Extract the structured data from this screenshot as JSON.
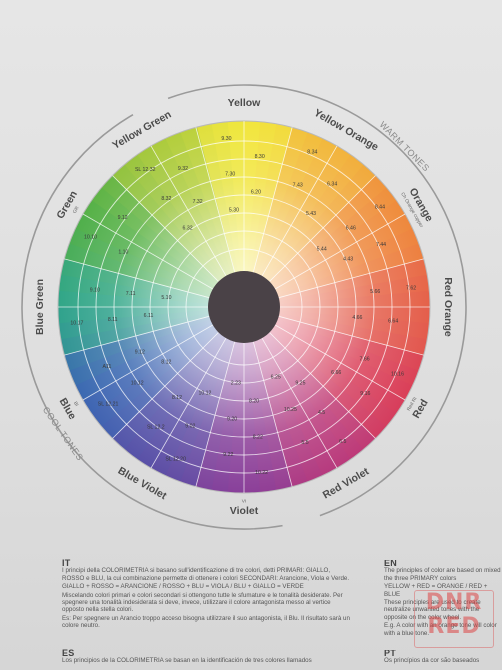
{
  "colors": {
    "yellow": "#f2e83c",
    "yellow_orange": "#f2b53c",
    "orange": "#ef8a3c",
    "red_orange": "#e5604a",
    "red": "#d93d59",
    "red_violet": "#b83a7d",
    "violet": "#8a3f99",
    "blue_violet": "#5b4fa6",
    "blue": "#3c66b3",
    "blue_green": "#2fa58a",
    "green": "#52b048",
    "yellow_green": "#a8c93c",
    "center": "#4a4247",
    "text": "#555555",
    "ring_line": "#888888"
  },
  "wheel": {
    "segments": [
      {
        "name": "Yellow",
        "sub": ""
      },
      {
        "name": "Yellow Orange",
        "sub": ""
      },
      {
        "name": "Orange",
        "sub": "Ch Orange copper"
      },
      {
        "name": "Red Orange",
        "sub": ""
      },
      {
        "name": "Red",
        "sub": "Red RI"
      },
      {
        "name": "Red Violet",
        "sub": ""
      },
      {
        "name": "Violet",
        "sub": "VI"
      },
      {
        "name": "Blue Violet",
        "sub": ""
      },
      {
        "name": "Blue",
        "sub": "BI"
      },
      {
        "name": "Blue Green",
        "sub": ""
      },
      {
        "name": "Green",
        "sub": "GR"
      },
      {
        "name": "Yellow Green",
        "sub": ""
      }
    ],
    "warm_label": "WARM TONES",
    "cool_label": "COOL TONES",
    "shade_codes": [
      {
        "seg": 0,
        "codes": [
          "9.30",
          "8.30",
          "7.30",
          "6.20",
          "5.30"
        ]
      },
      {
        "seg": 1,
        "codes": [
          "8.34",
          "6.34",
          "7.43",
          "5.43"
        ]
      },
      {
        "seg": 2,
        "codes": [
          "8.44",
          "7.44",
          "6.46",
          "4.43",
          "5.44"
        ]
      },
      {
        "seg": 3,
        "codes": [
          "7.62",
          "6.64",
          "5.66",
          "4.66"
        ]
      },
      {
        "seg": 4,
        "codes": [
          "10.16",
          "9.16",
          "7.66",
          "6.66"
        ]
      },
      {
        "seg": 5,
        "codes": [
          "6.5",
          "5.5",
          "4.5",
          "10.25",
          "9.25",
          "6.25"
        ]
      },
      {
        "seg": 6,
        "codes": [
          "10.22",
          "9.22",
          "8.22",
          "9.20",
          "8.20",
          "2.23"
        ]
      },
      {
        "seg": 7,
        "codes": [
          "SL 12.20",
          "SL 12.2",
          "9.02",
          "8.12",
          "10.12"
        ]
      },
      {
        "seg": 8,
        "codes": [
          "SL 12.21",
          "A11",
          "10.12",
          "9.12",
          "8.12"
        ]
      },
      {
        "seg": 9,
        "codes": [
          "10.17",
          "9.10",
          "8.11",
          "7.11",
          "6.11",
          "5.10"
        ]
      },
      {
        "seg": 10,
        "codes": [
          "10.10",
          "9.12",
          "1.10"
        ]
      },
      {
        "seg": 11,
        "codes": [
          "SL 12.32",
          "9.32",
          "8.32",
          "7.32",
          "6.32"
        ]
      }
    ]
  },
  "text": {
    "it_title": "IT",
    "it_p1": "I principi della COLORIMETRIA si basano sull'identificazione di tre colori, detti PRIMARI: GIALLO, ROSSO e BLU, la cui combinazione permette di ottenere i colori SECONDARI: Arancione, Viola e Verde.",
    "it_p2": "GIALLO + ROSSO = ARANCIONE / ROSSO + BLU = VIOLA / BLU + GIALLO = VERDE",
    "it_p3": "Miscelando colori primari e colori secondari si ottengono tutte le sfumature e le tonalità desiderate. Per spegnere una tonalità indesiderata si deve, invece, utilizzare il colore antagonista messo al vertice opposto nella stella colori.",
    "it_p4": "Es: Per spegnere un Arancio troppo acceso bisogna utilizzare il suo antagonista, il Blu. Il risultato sarà un colore neutro.",
    "en_title": "EN",
    "en_p1": "The principles of color are based on mixed the three PRIMARY colors",
    "en_p2": "YELLOW + RED = ORANGE / RED + BLUE",
    "en_p3": "These principles are used to create neutralize unwanted tones with the opposite on the color wheel.",
    "en_p4": "E.g. A color with an orange tone will color with a blue tone.",
    "es_title": "ES",
    "es_p1": "Los principios de la COLORIMETRIA se basan en la identificación de tres colores llamados",
    "pt_title": "PT",
    "pt_p1": "Os princípios da cor são baseados"
  },
  "watermark": "DNR RED"
}
